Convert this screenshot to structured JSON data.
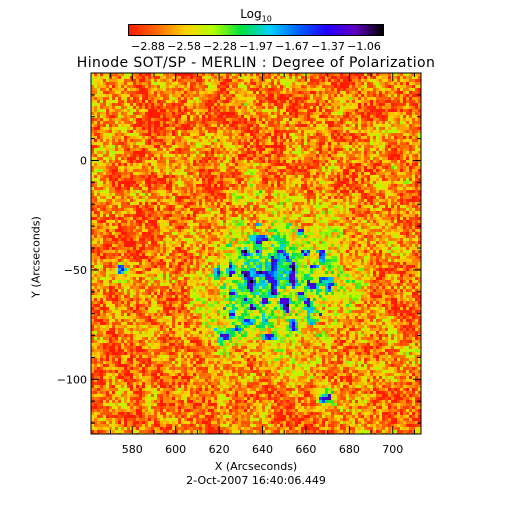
{
  "colorbar": {
    "title_main": "Log",
    "title_sub": "10",
    "tick_labels": [
      "-2.88",
      "-2.58",
      "-2.28",
      "-1.97",
      "-1.67",
      "-1.37",
      "-1.06"
    ],
    "colors": [
      "#ff1a00",
      "#ff6a00",
      "#ffd000",
      "#b0ff00",
      "#00e040",
      "#00d0ff",
      "#0060ff",
      "#2000ff",
      "#6000c0",
      "#000000"
    ]
  },
  "title": "Hinode SOT/SP - MERLIN : Degree of Polarization",
  "chart_data": {
    "type": "heatmap",
    "title": "Hinode SOT/SP - MERLIN : Degree of Polarization",
    "colorbar_label": "Log10",
    "value_range": [
      -2.88,
      -1.06
    ],
    "xlabel": "X (Arcseconds)",
    "ylabel": "Y (Arcseconds)",
    "xlim": [
      561,
      713
    ],
    "ylim": [
      -125,
      40
    ],
    "x_ticks": [
      580,
      600,
      620,
      640,
      660,
      680,
      700
    ],
    "y_ticks": [
      0,
      -50,
      -100
    ],
    "x_tick_labels": [
      "580",
      "600",
      "620",
      "640",
      "660",
      "680",
      "700"
    ],
    "y_tick_labels": [
      "0",
      "-50",
      "-100"
    ],
    "active_region_center": [
      645,
      -55
    ],
    "background_level": -2.65,
    "peak_level": -1.1
  },
  "timestamp": "2-Oct-2007 16:40:06.449"
}
